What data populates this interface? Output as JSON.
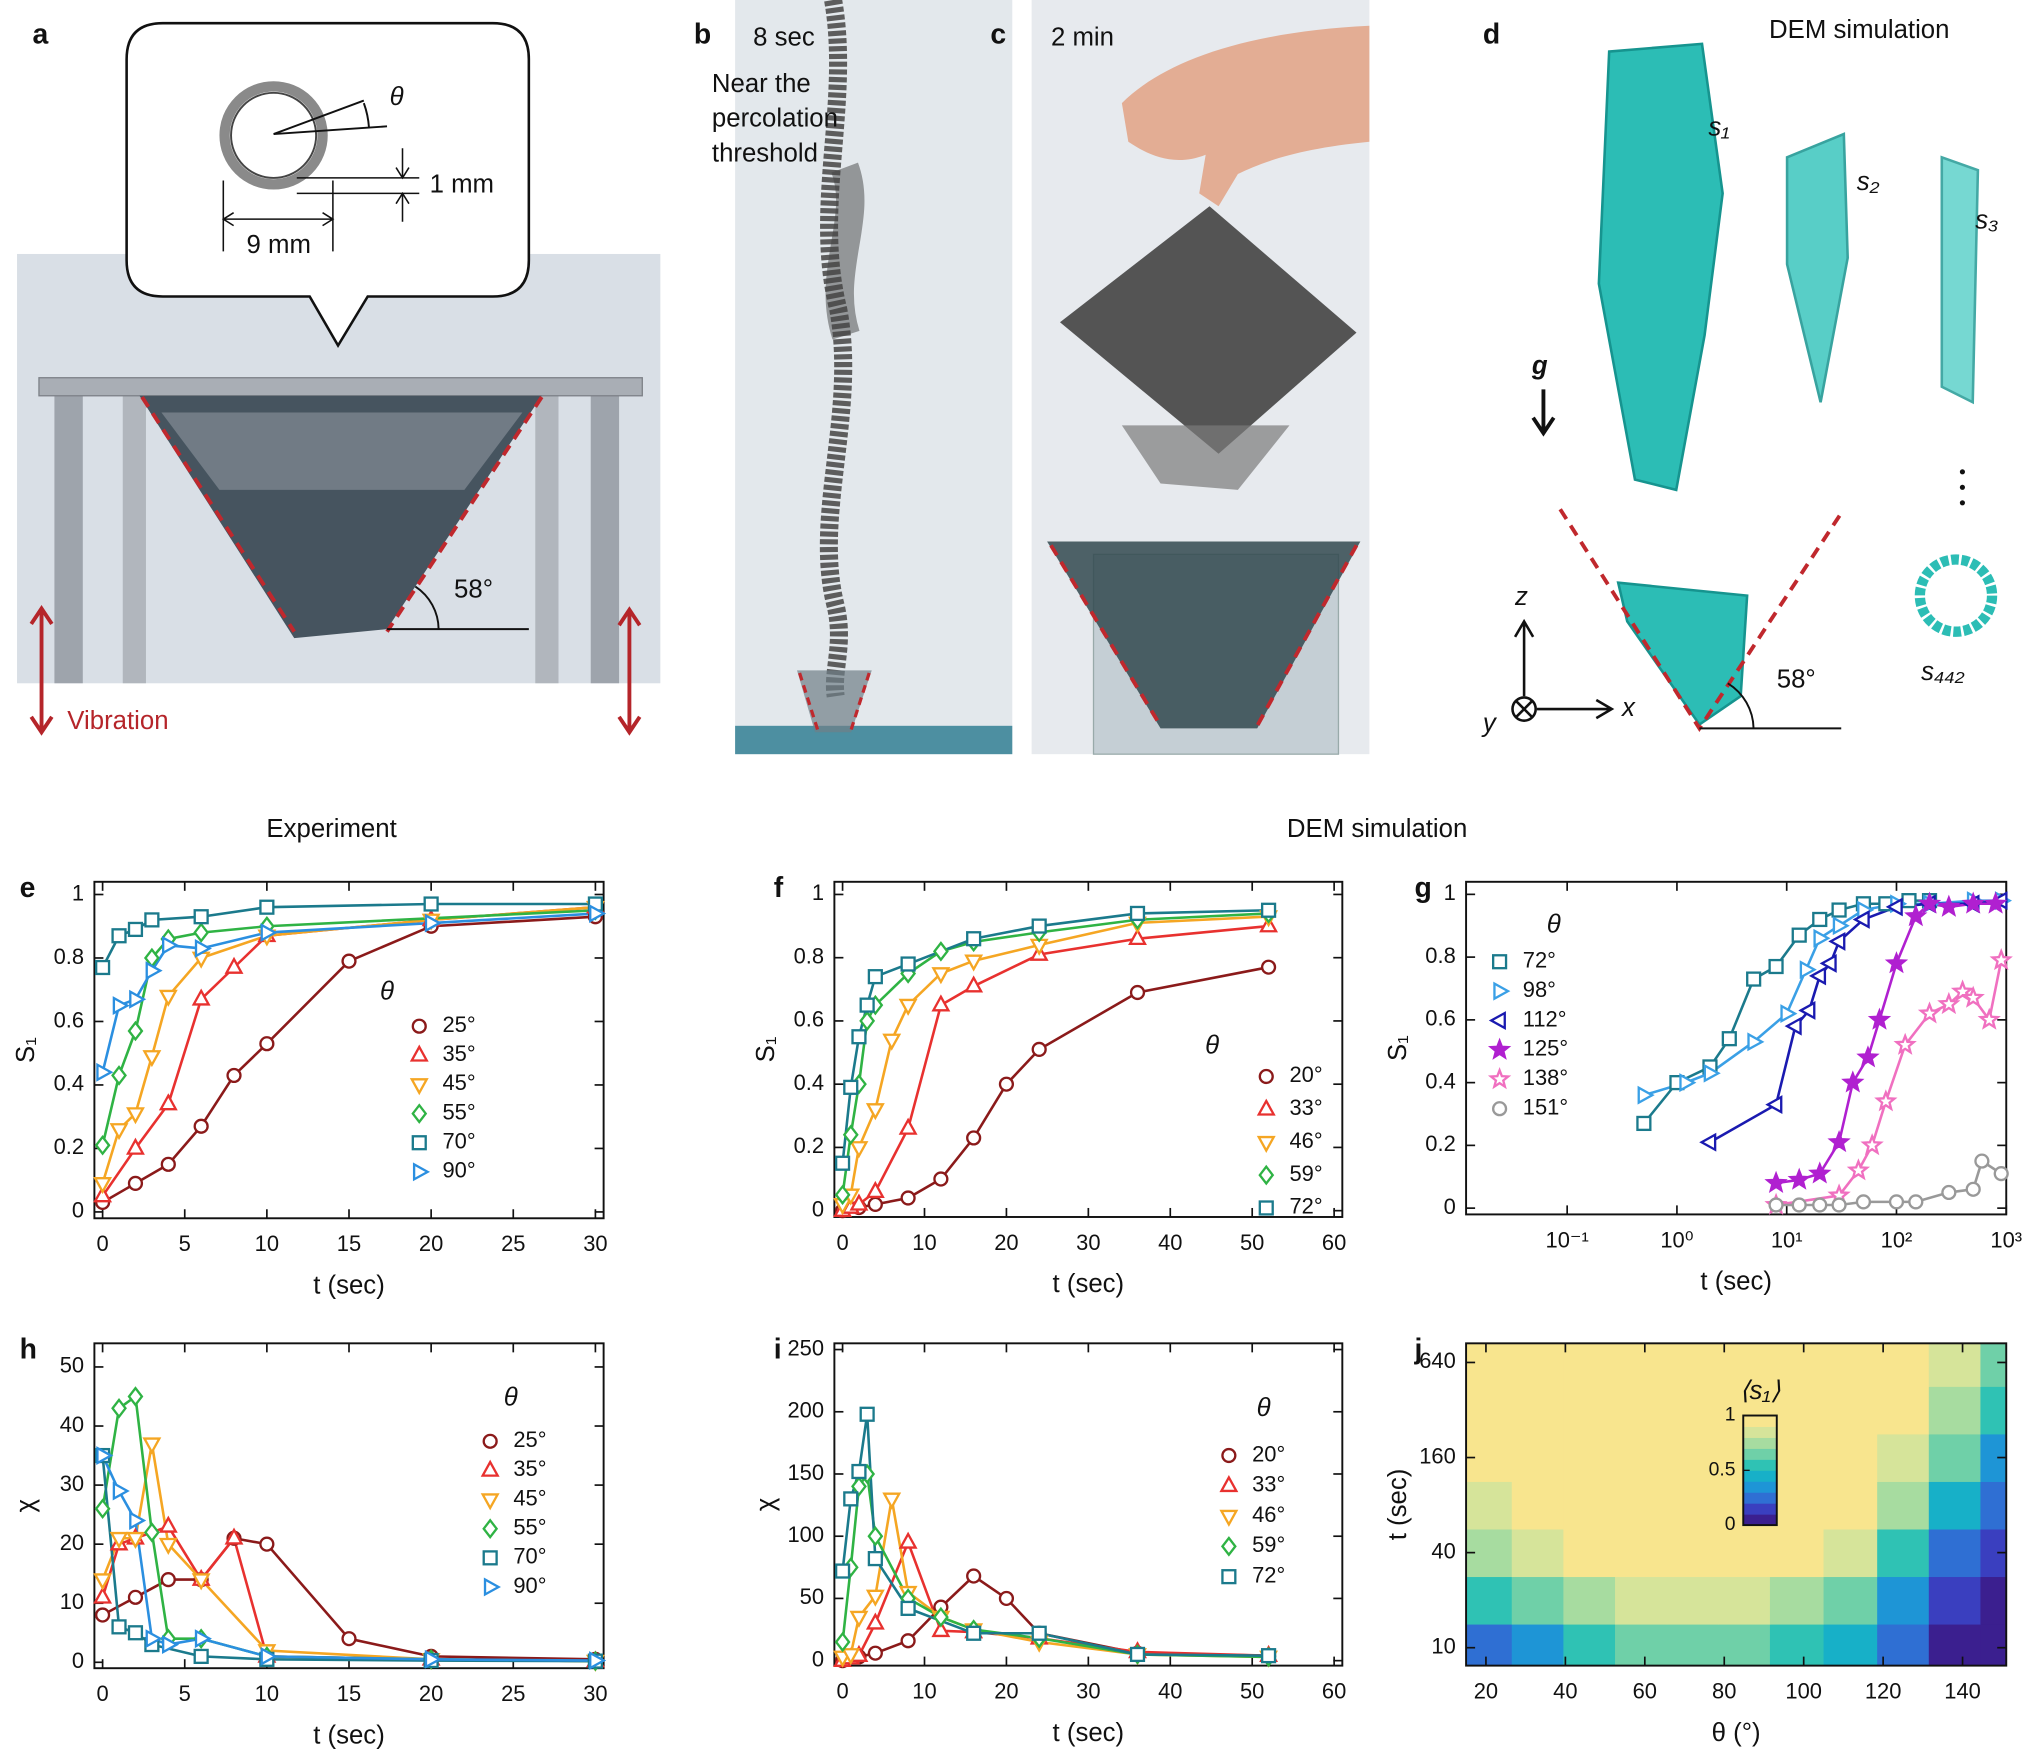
{
  "panels": {
    "a": {
      "label": "a",
      "theta": "θ",
      "thickness": "1 mm",
      "diameter": "9 mm",
      "angle": "58°",
      "vibration": "Vibration"
    },
    "b": {
      "label": "b",
      "time": "8 sec",
      "caption": [
        "Near the",
        "percolation",
        "threshold"
      ]
    },
    "c": {
      "label": "c",
      "time": "2 min"
    },
    "d": {
      "label": "d",
      "title": "DEM simulation",
      "gravity": "g",
      "clusters": [
        "s₁",
        "s₂",
        "s₃",
        "s₄₄₂"
      ],
      "axes": [
        "z",
        "x",
        "y"
      ],
      "angle": "58°"
    }
  },
  "section_titles": [
    "Experiment",
    "DEM simulation"
  ],
  "chart_data": [
    {
      "panel": "e",
      "type": "line",
      "xlabel": "t (sec)",
      "ylabel": "S₁",
      "legend_title": "θ",
      "xlim": [
        -0.5,
        30.5
      ],
      "xticks": [
        0,
        5,
        10,
        15,
        20,
        25,
        30
      ],
      "ylim": [
        -0.02,
        1.04
      ],
      "yticks": [
        0,
        0.2,
        0.4,
        0.6,
        0.8,
        1
      ],
      "series": [
        {
          "name": "25°",
          "color": "#8b1a1a",
          "marker": "circle",
          "x": [
            0,
            2,
            4,
            6,
            8,
            10,
            15,
            20,
            30
          ],
          "values": [
            0.03,
            0.09,
            0.15,
            0.27,
            0.43,
            0.53,
            0.79,
            0.9,
            0.93
          ]
        },
        {
          "name": "35°",
          "color": "#e8312f",
          "marker": "triangle-up",
          "x": [
            0,
            2,
            4,
            6,
            8,
            10,
            20,
            30
          ],
          "values": [
            0.05,
            0.2,
            0.34,
            0.67,
            0.77,
            0.87,
            0.92,
            0.96
          ]
        },
        {
          "name": "45°",
          "color": "#f5a623",
          "marker": "triangle-down",
          "x": [
            0,
            1,
            2,
            3,
            4,
            6,
            10,
            20,
            30
          ],
          "values": [
            0.09,
            0.26,
            0.31,
            0.49,
            0.68,
            0.8,
            0.87,
            0.92,
            0.96
          ]
        },
        {
          "name": "55°",
          "color": "#2fb344",
          "marker": "diamond",
          "x": [
            0,
            1,
            2,
            3,
            4,
            6,
            10,
            30
          ],
          "values": [
            0.21,
            0.43,
            0.57,
            0.8,
            0.86,
            0.88,
            0.9,
            0.95
          ]
        },
        {
          "name": "70°",
          "color": "#1b7a8c",
          "marker": "square",
          "x": [
            0,
            1,
            2,
            3,
            6,
            10,
            20,
            30
          ],
          "values": [
            0.77,
            0.87,
            0.89,
            0.92,
            0.93,
            0.96,
            0.97,
            0.97
          ]
        },
        {
          "name": "90°",
          "color": "#2b8fe0",
          "marker": "triangle-right",
          "x": [
            0,
            1,
            2,
            3,
            4,
            6,
            10,
            20,
            30
          ],
          "values": [
            0.44,
            0.65,
            0.67,
            0.76,
            0.84,
            0.83,
            0.88,
            0.91,
            0.94
          ]
        }
      ]
    },
    {
      "panel": "f",
      "type": "line",
      "xlabel": "t (sec)",
      "ylabel": "S₁",
      "legend_title": "θ",
      "xlim": [
        -1,
        61
      ],
      "xticks": [
        0,
        10,
        20,
        30,
        40,
        50,
        60
      ],
      "ylim": [
        -0.02,
        1.04
      ],
      "yticks": [
        0,
        0.2,
        0.4,
        0.6,
        0.8,
        1
      ],
      "series": [
        {
          "name": "20°",
          "color": "#8b1a1a",
          "marker": "circle",
          "x": [
            0,
            2,
            4,
            8,
            12,
            16,
            20,
            24,
            36,
            52
          ],
          "values": [
            0,
            0.01,
            0.02,
            0.04,
            0.1,
            0.23,
            0.4,
            0.51,
            0.69,
            0.77
          ]
        },
        {
          "name": "33°",
          "color": "#e8312f",
          "marker": "triangle-up",
          "x": [
            0,
            1,
            2,
            4,
            8,
            12,
            16,
            24,
            36,
            52
          ],
          "values": [
            0,
            0.01,
            0.02,
            0.06,
            0.26,
            0.65,
            0.71,
            0.81,
            0.86,
            0.9
          ]
        },
        {
          "name": "46°",
          "color": "#f5a623",
          "marker": "triangle-down",
          "x": [
            0,
            1,
            2,
            4,
            6,
            8,
            12,
            16,
            24,
            36,
            52
          ],
          "values": [
            0.02,
            0.05,
            0.2,
            0.32,
            0.54,
            0.65,
            0.75,
            0.79,
            0.84,
            0.91,
            0.93
          ]
        },
        {
          "name": "59°",
          "color": "#2fb344",
          "marker": "diamond",
          "x": [
            0,
            1,
            2,
            3,
            4,
            8,
            12,
            16,
            24,
            36,
            52
          ],
          "values": [
            0.05,
            0.24,
            0.4,
            0.6,
            0.65,
            0.75,
            0.82,
            0.85,
            0.88,
            0.92,
            0.94
          ]
        },
        {
          "name": "72°",
          "color": "#1b7a8c",
          "marker": "square",
          "x": [
            0,
            1,
            2,
            3,
            4,
            8,
            16,
            24,
            36,
            52
          ],
          "values": [
            0.15,
            0.39,
            0.55,
            0.65,
            0.74,
            0.78,
            0.86,
            0.9,
            0.94,
            0.95
          ]
        }
      ]
    },
    {
      "panel": "g",
      "type": "line",
      "xlabel": "t (sec)",
      "ylabel": "S₁",
      "legend_title": "θ",
      "xscale": "log",
      "xlim": [
        0.012,
        1000
      ],
      "xticks": [
        {
          "value": 0.1,
          "label": "10⁻¹"
        },
        {
          "value": 1,
          "label": "10⁰"
        },
        {
          "value": 10,
          "label": "10¹"
        },
        {
          "value": 100,
          "label": "10²"
        },
        {
          "value": 1000,
          "label": "10³"
        }
      ],
      "ylim": [
        -0.02,
        1.04
      ],
      "yticks": [
        0,
        0.2,
        0.4,
        0.6,
        0.8,
        1
      ],
      "series": [
        {
          "name": "72°",
          "color": "#1b7a8c",
          "marker": "square",
          "x": [
            0.5,
            1,
            2,
            3,
            5,
            8,
            13,
            20,
            30,
            50,
            80,
            130,
            200
          ],
          "values": [
            0.27,
            0.4,
            0.45,
            0.54,
            0.73,
            0.77,
            0.87,
            0.92,
            0.95,
            0.97,
            0.97,
            0.98,
            0.98
          ]
        },
        {
          "name": "98°",
          "color": "#3aa0e6",
          "marker": "triangle-right",
          "x": [
            0.5,
            1.2,
            2,
            5,
            10,
            15,
            20,
            30,
            50,
            100,
            200,
            500,
            900
          ],
          "values": [
            0.36,
            0.4,
            0.43,
            0.53,
            0.62,
            0.76,
            0.86,
            0.9,
            0.95,
            0.97,
            0.97,
            0.98,
            0.98
          ]
        },
        {
          "name": "112°",
          "color": "#1a1ab0",
          "marker": "triangle-left",
          "x": [
            2,
            8,
            12,
            16,
            20,
            25,
            30,
            50,
            100,
            200,
            500,
            900
          ],
          "values": [
            0.21,
            0.33,
            0.58,
            0.63,
            0.74,
            0.78,
            0.85,
            0.92,
            0.96,
            0.97,
            0.97,
            0.98
          ]
        },
        {
          "name": "125°",
          "color": "#b020d0",
          "marker": "star-filled",
          "x": [
            8,
            13,
            20,
            30,
            40,
            55,
            70,
            100,
            150,
            200,
            300,
            500,
            800
          ],
          "values": [
            0.08,
            0.09,
            0.11,
            0.21,
            0.4,
            0.48,
            0.6,
            0.78,
            0.93,
            0.97,
            0.96,
            0.97,
            0.97
          ]
        },
        {
          "name": "138°",
          "color": "#f070c0",
          "marker": "star",
          "x": [
            8,
            30,
            45,
            60,
            80,
            120,
            200,
            300,
            400,
            500,
            700,
            900
          ],
          "values": [
            0.01,
            0.04,
            0.12,
            0.2,
            0.34,
            0.52,
            0.62,
            0.65,
            0.69,
            0.67,
            0.6,
            0.79
          ]
        },
        {
          "name": "151°",
          "color": "#999999",
          "marker": "circle",
          "x": [
            8,
            13,
            20,
            30,
            50,
            100,
            150,
            300,
            500,
            600,
            900
          ],
          "values": [
            0.01,
            0.01,
            0.01,
            0.01,
            0.02,
            0.02,
            0.02,
            0.05,
            0.06,
            0.15,
            0.11
          ]
        }
      ]
    },
    {
      "panel": "h",
      "type": "line",
      "xlabel": "t (sec)",
      "ylabel": "χ",
      "legend_title": "θ",
      "xlim": [
        -0.5,
        30.5
      ],
      "xticks": [
        0,
        5,
        10,
        15,
        20,
        25,
        30
      ],
      "ylim": [
        -1,
        54
      ],
      "yticks": [
        0,
        10,
        20,
        30,
        40,
        50
      ],
      "series": [
        {
          "name": "25°",
          "color": "#8b1a1a",
          "marker": "circle",
          "x": [
            0,
            2,
            4,
            6,
            8,
            10,
            15,
            20,
            30
          ],
          "values": [
            8,
            11,
            14,
            14,
            21,
            20,
            4,
            1,
            0.5
          ]
        },
        {
          "name": "35°",
          "color": "#e8312f",
          "marker": "triangle-up",
          "x": [
            0,
            1,
            2,
            4,
            6,
            8,
            10,
            20,
            30
          ],
          "values": [
            11,
            20,
            21,
            23,
            14,
            21,
            1,
            0.5,
            0.2
          ]
        },
        {
          "name": "45°",
          "color": "#f5a623",
          "marker": "triangle-down",
          "x": [
            0,
            1,
            2,
            3,
            4,
            6,
            10,
            20,
            30
          ],
          "values": [
            14,
            21,
            21,
            37,
            20,
            14,
            2,
            0.5,
            0.2
          ]
        },
        {
          "name": "55°",
          "color": "#2fb344",
          "marker": "diamond",
          "x": [
            0,
            1,
            2,
            3,
            4,
            6,
            10,
            20,
            30
          ],
          "values": [
            26,
            43,
            45,
            22,
            4,
            4,
            1,
            0.5,
            0.2
          ]
        },
        {
          "name": "70°",
          "color": "#1b7a8c",
          "marker": "square",
          "x": [
            0,
            1,
            2,
            3,
            6,
            10,
            20,
            30
          ],
          "values": [
            35,
            6,
            5,
            3,
            1,
            0.5,
            0.3,
            0.2
          ]
        },
        {
          "name": "90°",
          "color": "#2b8fe0",
          "marker": "triangle-right",
          "x": [
            0,
            1,
            2,
            3,
            4,
            6,
            10,
            20,
            30
          ],
          "values": [
            35,
            29,
            24,
            4,
            3,
            4,
            1,
            0.5,
            0.3
          ]
        }
      ]
    },
    {
      "panel": "i",
      "type": "line",
      "xlabel": "t (sec)",
      "ylabel": "χ",
      "legend_title": "θ",
      "xlim": [
        -1,
        61
      ],
      "xticks": [
        0,
        10,
        20,
        30,
        40,
        50,
        60
      ],
      "ylim": [
        -4,
        255
      ],
      "yticks": [
        0,
        50,
        100,
        150,
        200,
        250
      ],
      "series": [
        {
          "name": "20°",
          "color": "#8b1a1a",
          "marker": "circle",
          "x": [
            0,
            2,
            4,
            8,
            12,
            16,
            20,
            24,
            36,
            52
          ],
          "values": [
            0,
            3,
            6,
            16,
            43,
            68,
            50,
            22,
            6,
            4
          ]
        },
        {
          "name": "33°",
          "color": "#e8312f",
          "marker": "triangle-up",
          "x": [
            0,
            1,
            2,
            4,
            8,
            12,
            16,
            24,
            36,
            52
          ],
          "values": [
            0,
            2,
            4,
            30,
            95,
            24,
            23,
            18,
            7,
            4
          ]
        },
        {
          "name": "46°",
          "color": "#f5a623",
          "marker": "triangle-down",
          "x": [
            0,
            1,
            2,
            4,
            6,
            8,
            12,
            16,
            24,
            36,
            52
          ],
          "values": [
            3,
            5,
            35,
            52,
            130,
            55,
            35,
            25,
            15,
            5,
            3
          ]
        },
        {
          "name": "59°",
          "color": "#2fb344",
          "marker": "diamond",
          "x": [
            0,
            1,
            2,
            3,
            4,
            8,
            12,
            16,
            24,
            36,
            52
          ],
          "values": [
            15,
            75,
            140,
            150,
            100,
            50,
            35,
            25,
            18,
            5,
            3
          ]
        },
        {
          "name": "72°",
          "color": "#1b7a8c",
          "marker": "square",
          "x": [
            0,
            1,
            2,
            3,
            4,
            8,
            16,
            24,
            36,
            52
          ],
          "values": [
            72,
            130,
            152,
            198,
            82,
            42,
            22,
            22,
            5,
            4
          ]
        }
      ]
    },
    {
      "panel": "j",
      "type": "heatmap",
      "xlabel": "θ (°)",
      "ylabel": "t (sec)",
      "colorbar_title": "⟨s₁⟩",
      "yscale": "log",
      "xlim": [
        15,
        151
      ],
      "xticks": [
        20,
        40,
        60,
        80,
        100,
        120,
        140
      ],
      "ylim": [
        7.7,
        846
      ],
      "yticks": [
        10,
        40,
        160,
        640
      ],
      "zlim": [
        0,
        1
      ],
      "colorbar_ticks": [
        0,
        0.5,
        1
      ],
      "colormap": [
        "#3b1f8f",
        "#3a3fbf",
        "#2f6fd3",
        "#1e95d6",
        "#17b0c8",
        "#2fc2b4",
        "#6fd0a8",
        "#a7dca0",
        "#d6e49a",
        "#f8e58e"
      ],
      "x": [
        20,
        33,
        46,
        59,
        72,
        85,
        98,
        112,
        125,
        138,
        151
      ],
      "y": [
        10,
        20,
        40,
        80,
        160,
        320,
        640
      ],
      "z": [
        [
          0.2,
          0.35,
          0.5,
          0.6,
          0.6,
          0.6,
          0.55,
          0.45,
          0.2,
          0.05,
          0.02
        ],
        [
          0.5,
          0.65,
          0.75,
          0.8,
          0.85,
          0.8,
          0.75,
          0.6,
          0.35,
          0.1,
          0.05
        ],
        [
          0.7,
          0.85,
          0.9,
          0.95,
          1,
          1,
          0.95,
          0.8,
          0.55,
          0.25,
          0.1
        ],
        [
          0.85,
          0.95,
          1,
          1,
          1,
          1,
          1,
          0.95,
          0.7,
          0.4,
          0.2
        ],
        [
          0.95,
          1,
          1,
          1,
          1,
          1,
          1,
          1,
          0.85,
          0.6,
          0.35
        ],
        [
          1,
          1,
          1,
          1,
          1,
          1,
          1,
          1,
          0.95,
          0.75,
          0.5
        ],
        [
          1,
          1,
          1,
          1,
          1,
          1,
          1,
          1,
          1,
          0.85,
          0.6
        ]
      ]
    }
  ]
}
